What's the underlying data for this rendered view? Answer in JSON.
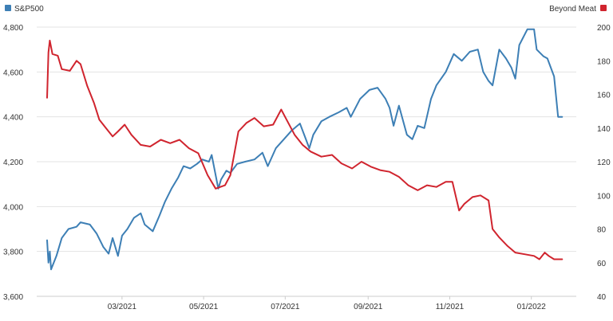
{
  "chart_data": {
    "type": "line",
    "legend": {
      "placement": "top"
    },
    "grid": {
      "horizontal": true,
      "vertical": false
    },
    "xlim": [
      "2021-01-04",
      "2022-01-31"
    ],
    "x_ticks": [
      {
        "date": "2021-03-01",
        "label": "03/2021"
      },
      {
        "date": "2021-05-01",
        "label": "05/2021"
      },
      {
        "date": "2021-07-01",
        "label": "07/2021"
      },
      {
        "date": "2021-09-01",
        "label": "09/2021"
      },
      {
        "date": "2021-11-01",
        "label": "11/2021"
      },
      {
        "date": "2022-01-01",
        "label": "01/2022"
      }
    ],
    "y_left": {
      "lim": [
        3600,
        4800
      ],
      "ticks": [
        3600,
        3800,
        4000,
        4200,
        4400,
        4600,
        4800
      ],
      "tick_labels": [
        "3,600",
        "3,800",
        "4,000",
        "4,200",
        "4,400",
        "4,600",
        "4,800"
      ]
    },
    "y_right": {
      "lim": [
        40,
        200
      ],
      "ticks": [
        40,
        60,
        80,
        100,
        120,
        140,
        160,
        180,
        200
      ],
      "tick_labels": [
        "40",
        "60",
        "80",
        "100",
        "120",
        "140",
        "160",
        "180",
        "200"
      ]
    },
    "series": [
      {
        "name": "S&P500",
        "axis": "left",
        "color": "#3d7fb5",
        "points": [
          [
            "2021-01-04",
            3850
          ],
          [
            "2021-01-05",
            3750
          ],
          [
            "2021-01-06",
            3800
          ],
          [
            "2021-01-07",
            3720
          ],
          [
            "2021-01-11",
            3780
          ],
          [
            "2021-01-15",
            3860
          ],
          [
            "2021-01-20",
            3900
          ],
          [
            "2021-01-26",
            3910
          ],
          [
            "2021-01-29",
            3930
          ],
          [
            "2021-02-05",
            3920
          ],
          [
            "2021-02-10",
            3880
          ],
          [
            "2021-02-15",
            3820
          ],
          [
            "2021-02-19",
            3790
          ],
          [
            "2021-02-22",
            3860
          ],
          [
            "2021-02-26",
            3780
          ],
          [
            "2021-03-01",
            3870
          ],
          [
            "2021-03-05",
            3900
          ],
          [
            "2021-03-10",
            3950
          ],
          [
            "2021-03-15",
            3970
          ],
          [
            "2021-03-18",
            3920
          ],
          [
            "2021-03-24",
            3890
          ],
          [
            "2021-03-29",
            3960
          ],
          [
            "2021-04-02",
            4020
          ],
          [
            "2021-04-07",
            4080
          ],
          [
            "2021-04-12",
            4130
          ],
          [
            "2021-04-16",
            4180
          ],
          [
            "2021-04-21",
            4170
          ],
          [
            "2021-04-26",
            4190
          ],
          [
            "2021-04-30",
            4210
          ],
          [
            "2021-05-05",
            4200
          ],
          [
            "2021-05-07",
            4230
          ],
          [
            "2021-05-12",
            4080
          ],
          [
            "2021-05-14",
            4120
          ],
          [
            "2021-05-18",
            4160
          ],
          [
            "2021-05-21",
            4150
          ],
          [
            "2021-05-26",
            4190
          ],
          [
            "2021-06-01",
            4200
          ],
          [
            "2021-06-08",
            4210
          ],
          [
            "2021-06-14",
            4240
          ],
          [
            "2021-06-18",
            4180
          ],
          [
            "2021-06-24",
            4260
          ],
          [
            "2021-06-30",
            4300
          ],
          [
            "2021-07-06",
            4340
          ],
          [
            "2021-07-12",
            4370
          ],
          [
            "2021-07-19",
            4260
          ],
          [
            "2021-07-22",
            4320
          ],
          [
            "2021-07-28",
            4380
          ],
          [
            "2021-08-03",
            4400
          ],
          [
            "2021-08-10",
            4420
          ],
          [
            "2021-08-16",
            4440
          ],
          [
            "2021-08-19",
            4400
          ],
          [
            "2021-08-26",
            4480
          ],
          [
            "2021-09-02",
            4520
          ],
          [
            "2021-09-08",
            4530
          ],
          [
            "2021-09-14",
            4480
          ],
          [
            "2021-09-17",
            4440
          ],
          [
            "2021-09-20",
            4360
          ],
          [
            "2021-09-24",
            4450
          ],
          [
            "2021-09-30",
            4320
          ],
          [
            "2021-10-04",
            4300
          ],
          [
            "2021-10-08",
            4360
          ],
          [
            "2021-10-13",
            4350
          ],
          [
            "2021-10-18",
            4480
          ],
          [
            "2021-10-22",
            4540
          ],
          [
            "2021-10-29",
            4600
          ],
          [
            "2021-11-04",
            4680
          ],
          [
            "2021-11-10",
            4650
          ],
          [
            "2021-11-16",
            4690
          ],
          [
            "2021-11-22",
            4700
          ],
          [
            "2021-11-26",
            4600
          ],
          [
            "2021-11-30",
            4560
          ],
          [
            "2021-12-03",
            4540
          ],
          [
            "2021-12-08",
            4700
          ],
          [
            "2021-12-13",
            4660
          ],
          [
            "2021-12-17",
            4620
          ],
          [
            "2021-12-20",
            4570
          ],
          [
            "2021-12-23",
            4720
          ],
          [
            "2021-12-29",
            4790
          ],
          [
            "2022-01-03",
            4790
          ],
          [
            "2022-01-05",
            4700
          ],
          [
            "2022-01-10",
            4670
          ],
          [
            "2022-01-13",
            4660
          ],
          [
            "2022-01-18",
            4580
          ],
          [
            "2022-01-21",
            4400
          ],
          [
            "2022-01-24",
            4400
          ]
        ]
      },
      {
        "name": "Beyond Meat",
        "axis": "right",
        "color": "#d0242e",
        "points": [
          [
            "2021-01-04",
            158
          ],
          [
            "2021-01-05",
            185
          ],
          [
            "2021-01-06",
            192
          ],
          [
            "2021-01-08",
            184
          ],
          [
            "2021-01-12",
            183
          ],
          [
            "2021-01-15",
            175
          ],
          [
            "2021-01-21",
            174
          ],
          [
            "2021-01-26",
            180
          ],
          [
            "2021-01-29",
            178
          ],
          [
            "2021-02-03",
            165
          ],
          [
            "2021-02-08",
            155
          ],
          [
            "2021-02-12",
            145
          ],
          [
            "2021-02-17",
            140
          ],
          [
            "2021-02-22",
            135
          ],
          [
            "2021-02-26",
            138
          ],
          [
            "2021-03-03",
            142
          ],
          [
            "2021-03-08",
            136
          ],
          [
            "2021-03-15",
            130
          ],
          [
            "2021-03-22",
            129
          ],
          [
            "2021-03-30",
            133
          ],
          [
            "2021-04-06",
            131
          ],
          [
            "2021-04-13",
            133
          ],
          [
            "2021-04-20",
            128
          ],
          [
            "2021-04-27",
            125
          ],
          [
            "2021-05-04",
            112
          ],
          [
            "2021-05-10",
            104
          ],
          [
            "2021-05-17",
            106
          ],
          [
            "2021-05-21",
            112
          ],
          [
            "2021-05-27",
            138
          ],
          [
            "2021-06-02",
            143
          ],
          [
            "2021-06-08",
            146
          ],
          [
            "2021-06-15",
            141
          ],
          [
            "2021-06-22",
            142
          ],
          [
            "2021-06-28",
            151
          ],
          [
            "2021-07-02",
            145
          ],
          [
            "2021-07-08",
            136
          ],
          [
            "2021-07-14",
            130
          ],
          [
            "2021-07-20",
            126
          ],
          [
            "2021-07-28",
            123
          ],
          [
            "2021-08-05",
            124
          ],
          [
            "2021-08-12",
            119
          ],
          [
            "2021-08-20",
            116
          ],
          [
            "2021-08-27",
            120
          ],
          [
            "2021-09-03",
            117
          ],
          [
            "2021-09-10",
            115
          ],
          [
            "2021-09-17",
            114
          ],
          [
            "2021-09-24",
            111
          ],
          [
            "2021-10-01",
            106
          ],
          [
            "2021-10-08",
            103
          ],
          [
            "2021-10-15",
            106
          ],
          [
            "2021-10-22",
            105
          ],
          [
            "2021-10-29",
            108
          ],
          [
            "2021-11-03",
            108
          ],
          [
            "2021-11-08",
            91
          ],
          [
            "2021-11-12",
            95
          ],
          [
            "2021-11-18",
            99
          ],
          [
            "2021-11-24",
            100
          ],
          [
            "2021-11-30",
            97
          ],
          [
            "2021-12-03",
            80
          ],
          [
            "2021-12-08",
            75
          ],
          [
            "2021-12-14",
            70
          ],
          [
            "2021-12-20",
            66
          ],
          [
            "2021-12-27",
            65
          ],
          [
            "2022-01-03",
            64
          ],
          [
            "2022-01-07",
            62
          ],
          [
            "2022-01-11",
            66
          ],
          [
            "2022-01-14",
            64
          ],
          [
            "2022-01-18",
            62
          ],
          [
            "2022-01-24",
            62
          ]
        ]
      }
    ]
  }
}
